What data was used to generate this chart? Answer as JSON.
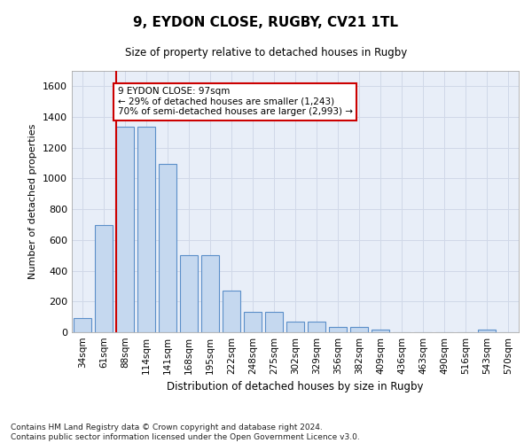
{
  "title": "9, EYDON CLOSE, RUGBY, CV21 1TL",
  "subtitle": "Size of property relative to detached houses in Rugby",
  "xlabel": "Distribution of detached houses by size in Rugby",
  "ylabel": "Number of detached properties",
  "bar_labels": [
    "34sqm",
    "61sqm",
    "88sqm",
    "114sqm",
    "141sqm",
    "168sqm",
    "195sqm",
    "222sqm",
    "248sqm",
    "275sqm",
    "302sqm",
    "329sqm",
    "356sqm",
    "382sqm",
    "409sqm",
    "436sqm",
    "463sqm",
    "490sqm",
    "516sqm",
    "543sqm",
    "570sqm"
  ],
  "bar_values": [
    95,
    700,
    1335,
    1335,
    1095,
    500,
    500,
    270,
    135,
    135,
    70,
    70,
    35,
    35,
    15,
    0,
    0,
    0,
    0,
    15,
    0
  ],
  "bar_color": "#c5d8ef",
  "bar_edge_color": "#5b8fc9",
  "grid_color": "#d0d8e8",
  "bg_color": "#e8eef8",
  "vline_x_index": 2,
  "vline_color": "#cc0000",
  "annotation_text_line1": "9 EYDON CLOSE: 97sqm",
  "annotation_text_line2": "← 29% of detached houses are smaller (1,243)",
  "annotation_text_line3": "70% of semi-detached houses are larger (2,993) →",
  "annotation_box_color": "white",
  "annotation_box_edge": "#cc0000",
  "ylim": [
    0,
    1700
  ],
  "yticks": [
    0,
    200,
    400,
    600,
    800,
    1000,
    1200,
    1400,
    1600
  ],
  "footer": "Contains HM Land Registry data © Crown copyright and database right 2024.\nContains public sector information licensed under the Open Government Licence v3.0."
}
